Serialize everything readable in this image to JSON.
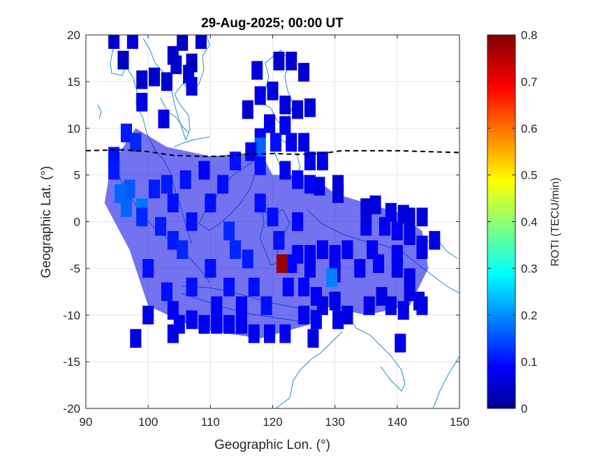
{
  "chart_data": {
    "type": "heatmap",
    "title": "29-Aug-2025; 00:00 UT",
    "xlabel": "Geographic Lon. (°)",
    "ylabel": "Geographic Lat. (°)",
    "xlim": [
      90,
      150
    ],
    "ylim": [
      -20,
      20
    ],
    "x_ticks": [
      "90",
      "100",
      "110",
      "120",
      "130",
      "140",
      "150"
    ],
    "y_ticks": [
      "-20",
      "-15",
      "-10",
      "-5",
      "0",
      "5",
      "10",
      "15",
      "20"
    ],
    "grid": true,
    "colorbar": {
      "label": "ROTI (TECU/min)",
      "range": [
        0,
        0.8
      ],
      "ticks": [
        "0",
        "0.1",
        "0.2",
        "0.3",
        "0.4",
        "0.5",
        "0.6",
        "0.7",
        "0.8"
      ],
      "colormap": "jet"
    },
    "magnetic_equator": {
      "style": "dashed",
      "color": "#000000",
      "points": [
        [
          90,
          7.6
        ],
        [
          96,
          7.7
        ],
        [
          100,
          7.5
        ],
        [
          104,
          7.1
        ],
        [
          108,
          7.0
        ],
        [
          112,
          7.0
        ],
        [
          116,
          7.2
        ],
        [
          120,
          7.3
        ],
        [
          124,
          7.2
        ],
        [
          128,
          7.3
        ],
        [
          131,
          7.6
        ],
        [
          136,
          7.6
        ],
        [
          140,
          7.6
        ],
        [
          145,
          7.5
        ],
        [
          150,
          7.4
        ]
      ]
    },
    "background_value": 0.08,
    "cells": [
      [
        94.5,
        19.5,
        0.06
      ],
      [
        97.5,
        19.5,
        0.07
      ],
      [
        105.5,
        19.3,
        0.05
      ],
      [
        108.5,
        19.5,
        0.06
      ],
      [
        96,
        17.3,
        0.05
      ],
      [
        104,
        17.8,
        0.06
      ],
      [
        107,
        17.0,
        0.05
      ],
      [
        104.5,
        16.8,
        0.06
      ],
      [
        106.5,
        15.8,
        0.06
      ],
      [
        99,
        15.2,
        0.06
      ],
      [
        101,
        15.5,
        0.06
      ],
      [
        103,
        15.0,
        0.06
      ],
      [
        107,
        14.5,
        0.07
      ],
      [
        99,
        12.8,
        0.08
      ],
      [
        102.5,
        11.0,
        0.08
      ],
      [
        117.5,
        16.2,
        0.07
      ],
      [
        121,
        17.2,
        0.06
      ],
      [
        123,
        17.2,
        0.06
      ],
      [
        125,
        16.0,
        0.06
      ],
      [
        116,
        12.0,
        0.06
      ],
      [
        118,
        13.5,
        0.08
      ],
      [
        120,
        14.0,
        0.08
      ],
      [
        122,
        12.5,
        0.07
      ],
      [
        124,
        12.0,
        0.07
      ],
      [
        126,
        12.2,
        0.07
      ],
      [
        119.5,
        10.5,
        0.08
      ],
      [
        122,
        10.3,
        0.09
      ],
      [
        118,
        9.0,
        0.1
      ],
      [
        120.5,
        8.5,
        0.11
      ],
      [
        123,
        8.5,
        0.09
      ],
      [
        125,
        8.5,
        0.08
      ],
      [
        118,
        8.0,
        0.18
      ],
      [
        116.5,
        7.5,
        0.1
      ],
      [
        126,
        6.5,
        0.09
      ],
      [
        128,
        6.5,
        0.08
      ],
      [
        122,
        5.5,
        0.09
      ],
      [
        124,
        4.5,
        0.1
      ],
      [
        126,
        4.0,
        0.09
      ],
      [
        127.5,
        3.8,
        0.08
      ],
      [
        130.5,
        4.0,
        0.07
      ],
      [
        130.5,
        3.0,
        0.07
      ],
      [
        135,
        1.5,
        0.07
      ],
      [
        136.5,
        1.8,
        0.07
      ],
      [
        139,
        1.0,
        0.08
      ],
      [
        141,
        0.8,
        0.07
      ],
      [
        142,
        0.5,
        0.07
      ],
      [
        144,
        0.5,
        0.07
      ],
      [
        135,
        -0.5,
        0.08
      ],
      [
        138,
        -0.5,
        0.09
      ],
      [
        140,
        -1.0,
        0.09
      ],
      [
        142,
        -1.5,
        0.08
      ],
      [
        144,
        -2.5,
        0.08
      ],
      [
        146,
        -2.0,
        0.08
      ],
      [
        144,
        -3.0,
        0.08
      ],
      [
        140,
        -3.5,
        0.09
      ],
      [
        136,
        -3.0,
        0.09
      ],
      [
        132,
        -3.0,
        0.09
      ],
      [
        130,
        -3.5,
        0.09
      ],
      [
        128,
        -3.0,
        0.09
      ],
      [
        126,
        -3.5,
        0.09
      ],
      [
        124,
        -3.5,
        0.1
      ],
      [
        123,
        -4.5,
        0.1
      ],
      [
        126,
        -5.0,
        0.09
      ],
      [
        130,
        -5.5,
        0.09
      ],
      [
        134,
        -5.0,
        0.09
      ],
      [
        137,
        -4.5,
        0.09
      ],
      [
        140,
        -5.0,
        0.09
      ],
      [
        142,
        -6.0,
        0.08
      ],
      [
        143.5,
        -8.5,
        0.08
      ],
      [
        142,
        -7.5,
        0.08
      ],
      [
        137.5,
        -8.0,
        0.08
      ],
      [
        135.5,
        -9.0,
        0.08
      ],
      [
        139,
        -9.0,
        0.08
      ],
      [
        141,
        -9.5,
        0.08
      ],
      [
        144,
        -9.0,
        0.08
      ],
      [
        130,
        -8.5,
        0.08
      ],
      [
        128,
        -9.0,
        0.08
      ],
      [
        130.5,
        -10.5,
        0.08
      ],
      [
        132,
        -10.0,
        0.08
      ],
      [
        140.5,
        -13.0,
        0.08
      ],
      [
        121.5,
        -4.5,
        0.78
      ],
      [
        129.5,
        -6.0,
        0.2
      ],
      [
        122.5,
        -7.0,
        0.1
      ],
      [
        125,
        -7.0,
        0.1
      ],
      [
        127,
        -8.0,
        0.09
      ],
      [
        127,
        -10.5,
        0.09
      ],
      [
        125,
        -10.0,
        0.09
      ],
      [
        122,
        -12.0,
        0.09
      ],
      [
        119.5,
        -12.0,
        0.09
      ],
      [
        117,
        -12.0,
        0.09
      ],
      [
        126.5,
        -12.5,
        0.08
      ],
      [
        115,
        -11.0,
        0.09
      ],
      [
        113,
        -11.0,
        0.09
      ],
      [
        111,
        -11.0,
        0.09
      ],
      [
        109,
        -11.0,
        0.09
      ],
      [
        107,
        -10.5,
        0.09
      ],
      [
        105,
        -11.0,
        0.09
      ],
      [
        104,
        -12.0,
        0.08
      ],
      [
        98,
        -12.5,
        0.08
      ],
      [
        100,
        -10.0,
        0.08
      ],
      [
        94.5,
        7.0,
        0.11
      ],
      [
        94.5,
        5.5,
        0.12
      ],
      [
        96.5,
        9.5,
        0.12
      ],
      [
        98,
        8.5,
        0.13
      ],
      [
        97,
        3.5,
        0.17
      ],
      [
        95.5,
        3.0,
        0.18
      ],
      [
        96.5,
        1.5,
        0.18
      ],
      [
        99,
        1.5,
        0.19
      ],
      [
        99,
        0.5,
        0.13
      ],
      [
        101,
        3.5,
        0.12
      ],
      [
        103,
        4.0,
        0.12
      ],
      [
        104,
        2.0,
        0.11
      ],
      [
        104,
        -2.0,
        0.12
      ],
      [
        105.5,
        -3.0,
        0.13
      ],
      [
        114,
        -3.0,
        0.13
      ],
      [
        116,
        -4.0,
        0.12
      ],
      [
        113,
        -1.0,
        0.13
      ],
      [
        118,
        6.0,
        0.11
      ],
      [
        112,
        4.0,
        0.11
      ],
      [
        109,
        5.5,
        0.1
      ],
      [
        106,
        4.5,
        0.11
      ],
      [
        114,
        6.5,
        0.11
      ],
      [
        110,
        2.0,
        0.11
      ],
      [
        118,
        2.0,
        0.11
      ],
      [
        110,
        -5.0,
        0.11
      ],
      [
        107,
        -7.0,
        0.11
      ],
      [
        103,
        -7.5,
        0.11
      ],
      [
        100,
        -5.0,
        0.11
      ],
      [
        113,
        -7.0,
        0.11
      ],
      [
        117,
        -7.0,
        0.11
      ],
      [
        119,
        -9.0,
        0.11
      ],
      [
        111,
        -9.0,
        0.1
      ],
      [
        115,
        -9.0,
        0.1
      ],
      [
        104,
        -9.5,
        0.1
      ],
      [
        121,
        -2.0,
        0.11
      ],
      [
        124,
        0.0,
        0.1
      ],
      [
        120,
        0.5,
        0.11
      ],
      [
        102,
        -0.5,
        0.12
      ],
      [
        107,
        0.0,
        0.11
      ]
    ]
  }
}
